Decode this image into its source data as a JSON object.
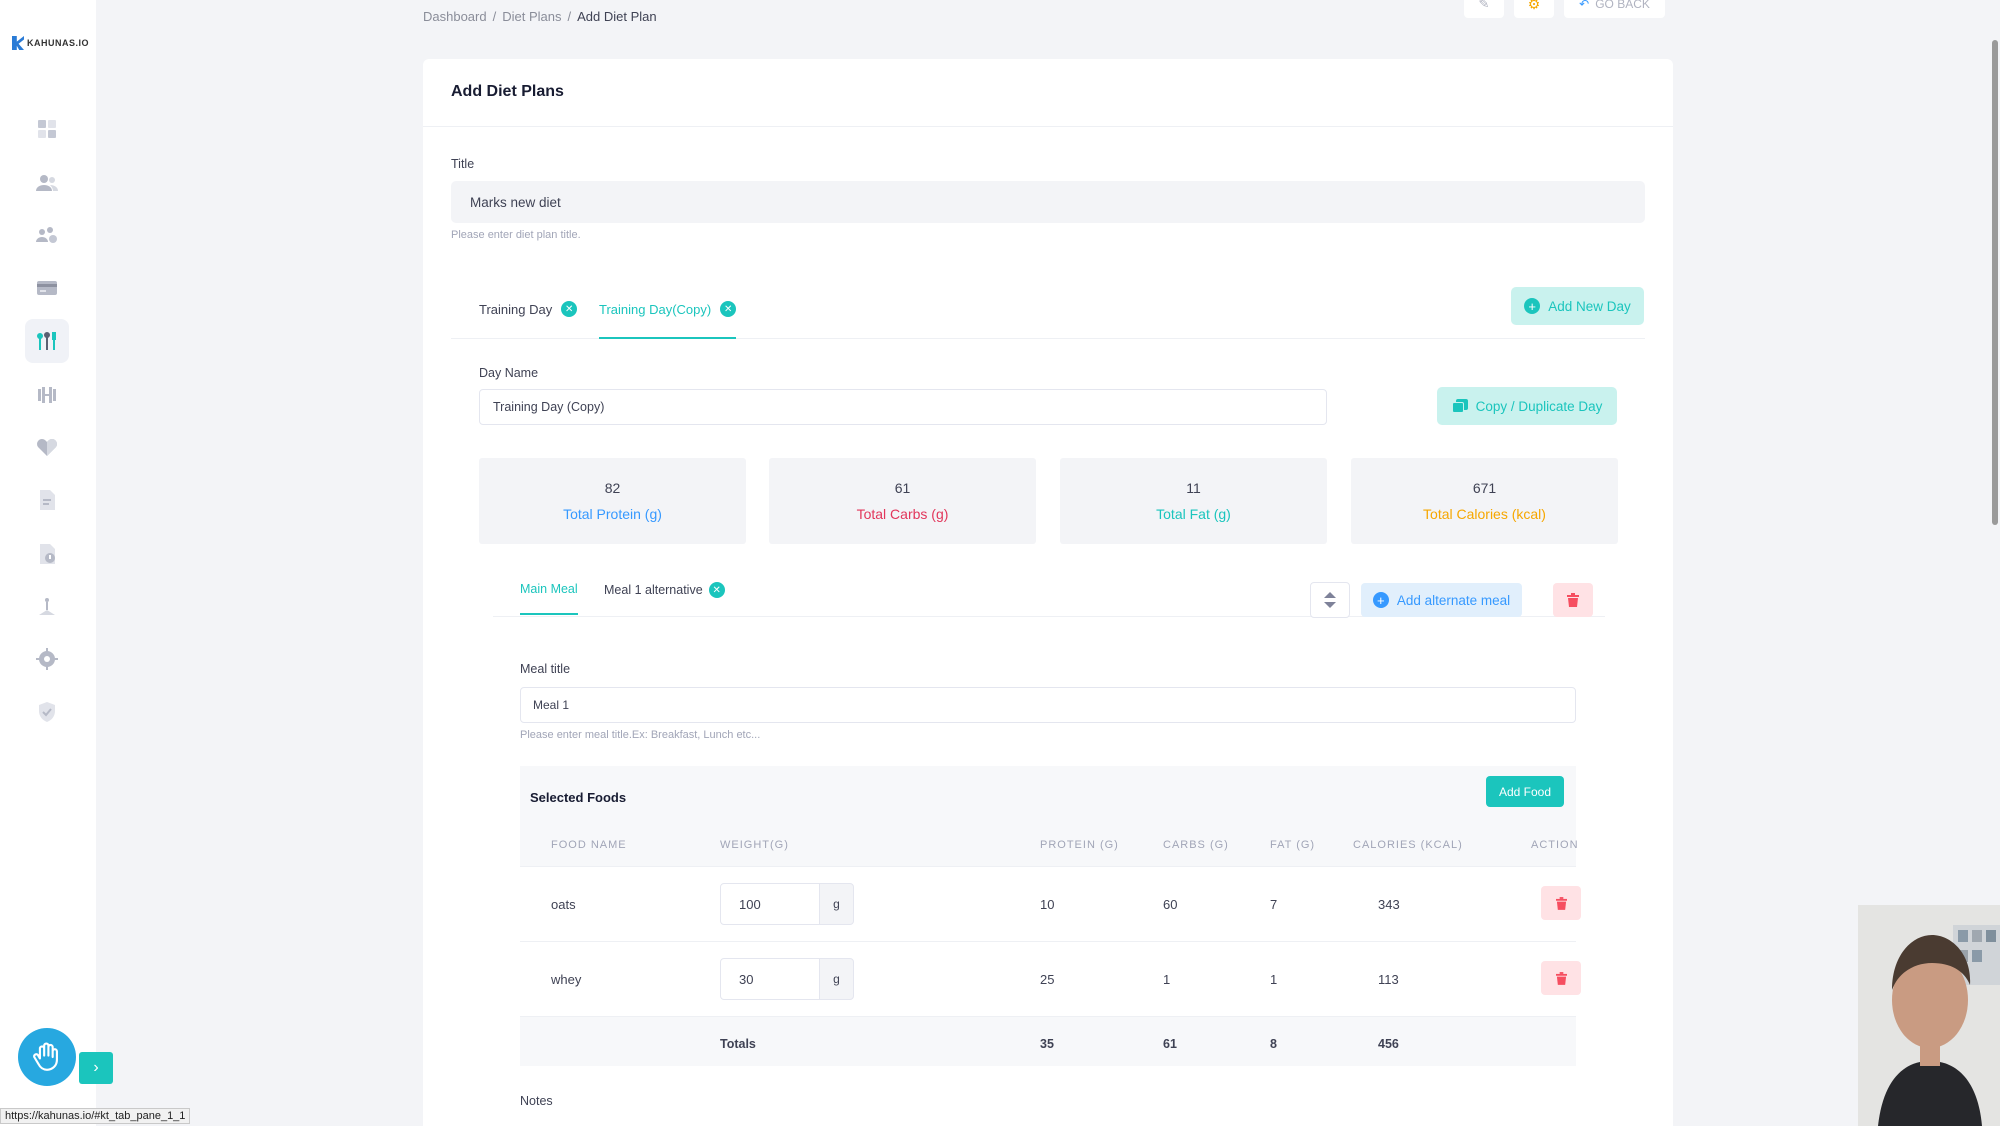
{
  "brand": {
    "name": "KAHUNAS.IO"
  },
  "breadcrumb": {
    "items": [
      "Dashboard",
      "Diet Plans"
    ],
    "separator": "/",
    "current": "Add Diet Plan"
  },
  "top_actions": {
    "go_back": "GO BACK"
  },
  "card": {
    "title": "Add Diet Plans"
  },
  "form": {
    "title_label": "Title",
    "title_value": "Marks new diet",
    "title_hint": "Please enter diet plan title."
  },
  "day_tabs": [
    {
      "label": "Training Day",
      "active": false
    },
    {
      "label": "Training Day(Copy)",
      "active": true
    }
  ],
  "add_new_day": "Add New Day",
  "day": {
    "name_label": "Day Name",
    "name_value": "Training Day (Copy)",
    "copy_button": "Copy / Duplicate Day"
  },
  "stats": [
    {
      "value": "82",
      "label": "Total Protein (g)",
      "color": "#3699ff"
    },
    {
      "value": "61",
      "label": "Total Carbs (g)",
      "color": "#e2365b"
    },
    {
      "value": "11",
      "label": "Total Fat (g)",
      "color": "#1bc5bd"
    },
    {
      "value": "671",
      "label": "Total Calories (kcal)",
      "color": "#f6a700"
    }
  ],
  "meal_tabs": [
    {
      "label": "Main Meal",
      "active": true
    },
    {
      "label": "Meal 1 alternative",
      "active": false
    }
  ],
  "add_alternate_meal": "Add alternate meal",
  "meal": {
    "title_label": "Meal title",
    "title_value": "Meal 1",
    "title_hint": "Please enter meal title.Ex: Breakfast, Lunch etc..."
  },
  "foods": {
    "heading": "Selected Foods",
    "add_button": "Add Food",
    "columns": [
      "FOOD NAME",
      "WEIGHT(G)",
      "PROTEIN (G)",
      "CARBS (G)",
      "FAT (G)",
      "CALORIES (KCAL)",
      "ACTION"
    ],
    "rows": [
      {
        "name": "oats",
        "weight": "100",
        "unit": "g",
        "protein": "10",
        "carbs": "60",
        "fat": "7",
        "calories": "343"
      },
      {
        "name": "whey",
        "weight": "30",
        "unit": "g",
        "protein": "25",
        "carbs": "1",
        "fat": "1",
        "calories": "113"
      }
    ],
    "totals": {
      "label": "Totals",
      "protein": "35",
      "carbs": "61",
      "fat": "8",
      "calories": "456"
    }
  },
  "notes_label": "Notes",
  "status_url": "https://kahunas.io/#kt_tab_pane_1_1",
  "colors": {
    "accent": "#1bc5bd",
    "primary": "#3699ff",
    "danger": "#f64e60"
  },
  "sidebar_icons": [
    "dashboard-icon",
    "clients-icon",
    "groups-icon",
    "payments-icon",
    "diet-plans-icon",
    "workouts-icon",
    "health-icon",
    "documents-icon",
    "forms-icon",
    "habits-icon",
    "settings-icon",
    "security-icon"
  ]
}
